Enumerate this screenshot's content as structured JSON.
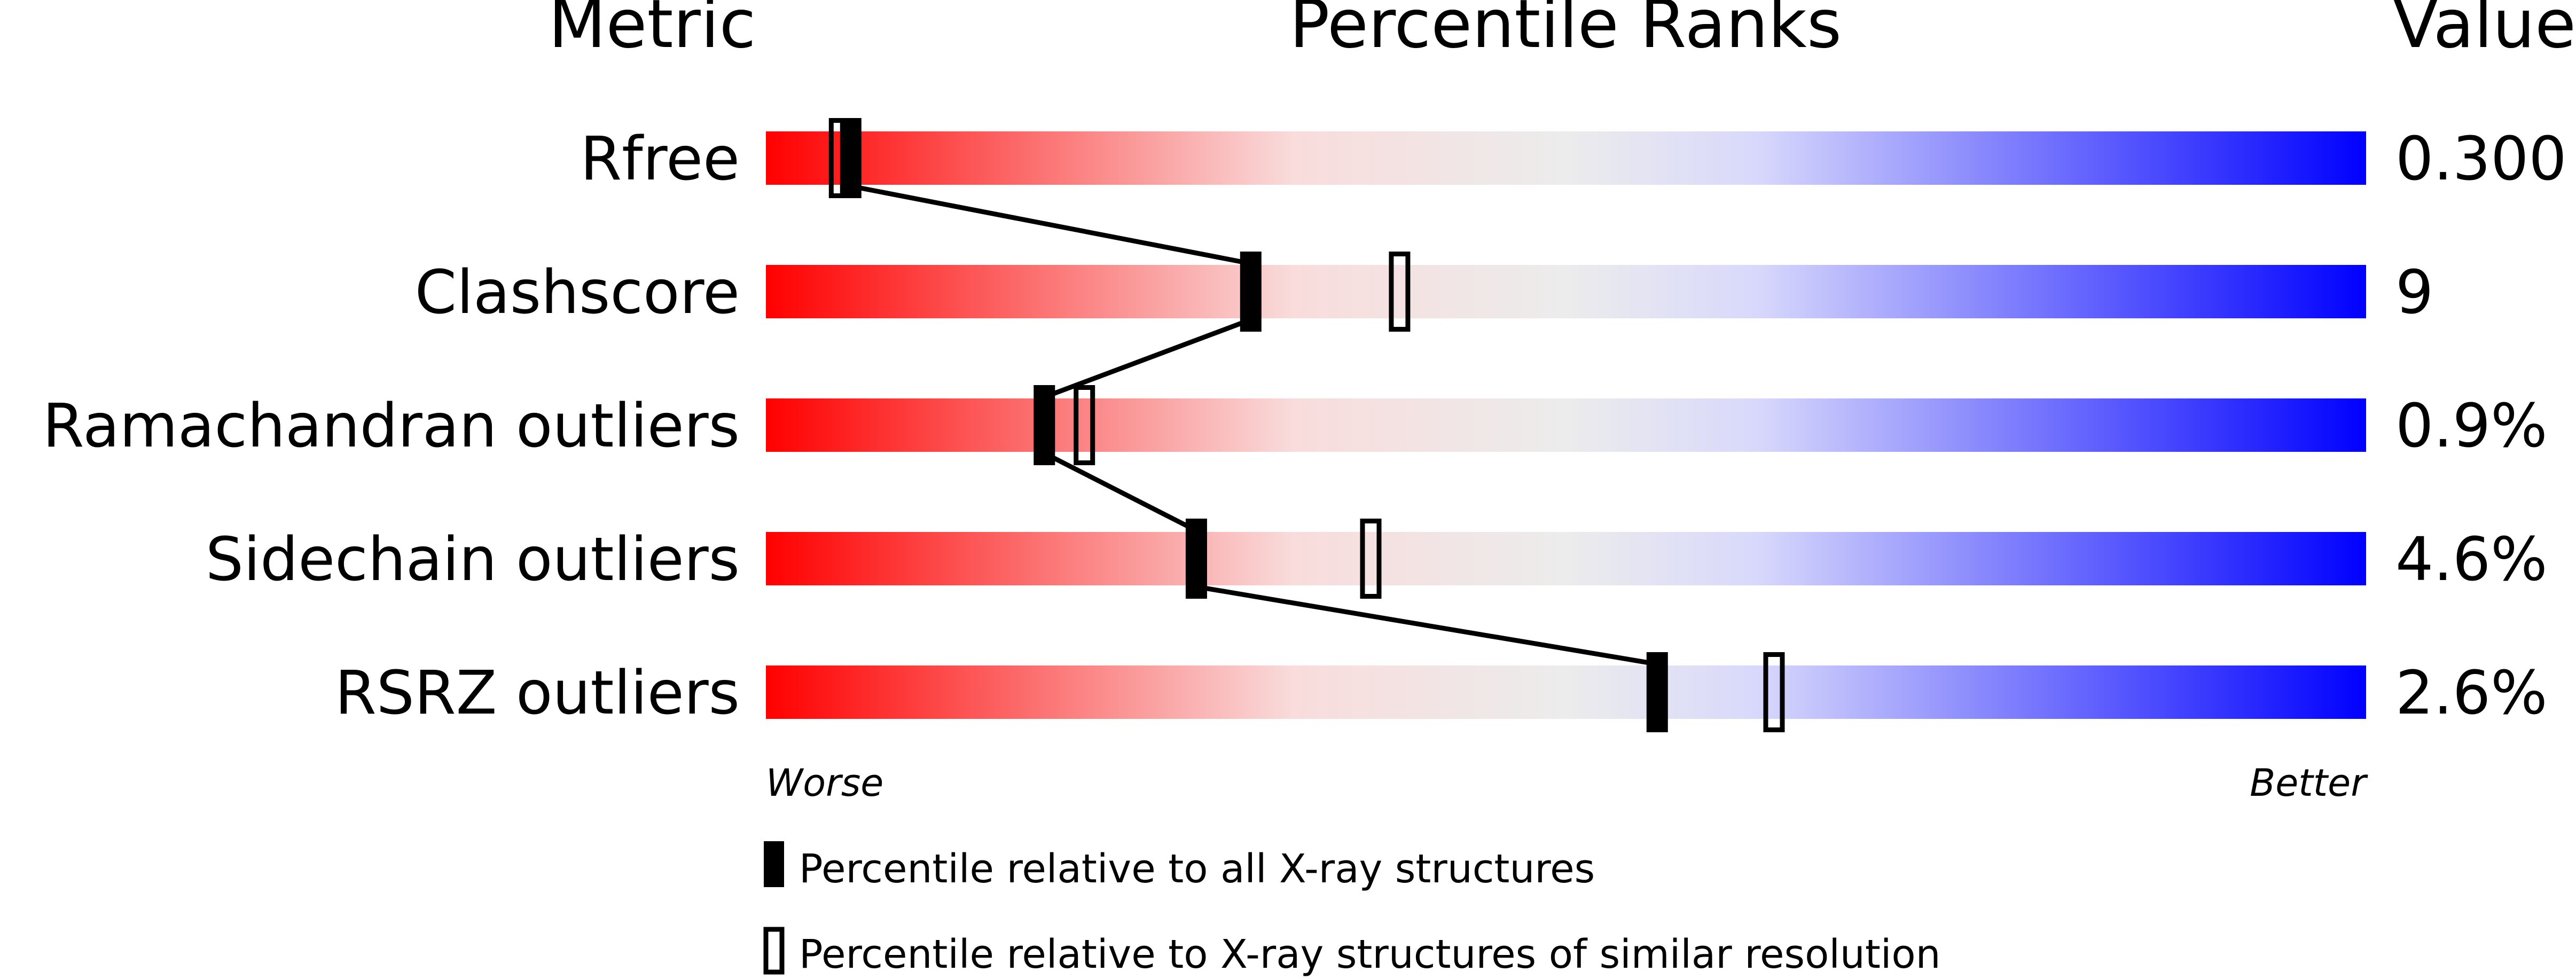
{
  "chart_data": {
    "type": "bar",
    "headers": {
      "metric": "Metric",
      "ranks": "Percentile Ranks",
      "value": "Value"
    },
    "xlim": [
      0,
      100
    ],
    "axis_labels": {
      "worse": "Worse",
      "better": "Better"
    },
    "gradient_colors": [
      "#ff0000",
      "#f9dcdc",
      "#ececec",
      "#d8d8fc",
      "#0000ff"
    ],
    "rows": [
      {
        "metric": "Rfree",
        "value": "0.300",
        "percentile_all": 5.3,
        "percentile_similar": 4.6
      },
      {
        "metric": "Clashscore",
        "value": "9",
        "percentile_all": 30.3,
        "percentile_similar": 39.6
      },
      {
        "metric": "Ramachandran outliers",
        "value": "0.9%",
        "percentile_all": 17.4,
        "percentile_similar": 19.9
      },
      {
        "metric": "Sidechain outliers",
        "value": "4.6%",
        "percentile_all": 26.9,
        "percentile_similar": 37.8
      },
      {
        "metric": "RSRZ outliers",
        "value": "2.6%",
        "percentile_all": 55.7,
        "percentile_similar": 63.0
      }
    ],
    "legend": [
      {
        "marker": "filled",
        "label": "Percentile relative to all X-ray structures"
      },
      {
        "marker": "open",
        "label": "Percentile relative to X-ray structures of similar resolution"
      }
    ]
  }
}
